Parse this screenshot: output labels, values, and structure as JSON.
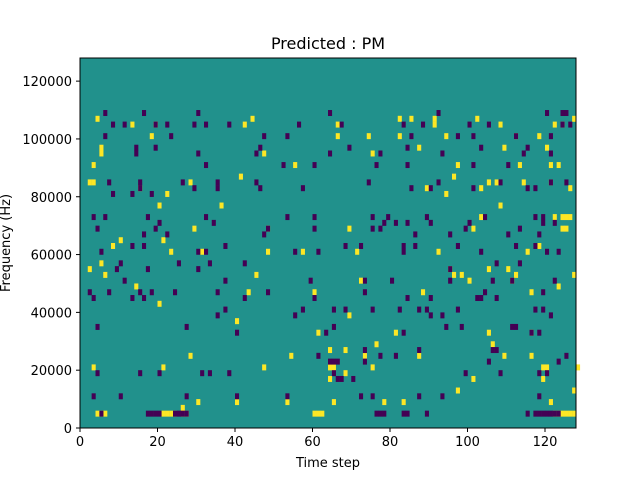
{
  "chart_data": {
    "type": "heatmap",
    "title": "Predicted : PM",
    "xlabel": "Time step",
    "ylabel": "Frequency (Hz)",
    "xlim": [
      0,
      128
    ],
    "ylim": [
      0,
      128000
    ],
    "xticks": [
      0,
      20,
      40,
      60,
      80,
      100,
      120
    ],
    "yticks": [
      0,
      20000,
      40000,
      60000,
      80000,
      100000,
      120000
    ],
    "xtick_labels": [
      "0",
      "20",
      "40",
      "60",
      "80",
      "100",
      "120"
    ],
    "ytick_labels": [
      "0",
      "20000",
      "40000",
      "60000",
      "80000",
      "100000",
      "120000"
    ],
    "grid": false,
    "colormap": "viridis",
    "colors": {
      "background": "#21918c",
      "low": "#440154",
      "high": "#fde725"
    },
    "cell_size": {
      "time_steps": 1,
      "frequency_hz": 2000
    },
    "high_cells": [
      [
        4,
        2
      ],
      [
        5,
        2
      ],
      [
        6,
        2
      ],
      [
        21,
        2
      ],
      [
        22,
        2
      ],
      [
        23,
        2
      ],
      [
        24,
        2
      ],
      [
        26,
        2
      ],
      [
        27,
        2
      ],
      [
        60,
        2
      ],
      [
        61,
        2
      ],
      [
        62,
        2
      ],
      [
        122,
        2
      ],
      [
        123,
        2
      ],
      [
        124,
        2
      ],
      [
        125,
        2
      ],
      [
        126,
        2
      ],
      [
        127,
        2
      ],
      [
        26,
        3
      ],
      [
        30,
        4
      ],
      [
        40,
        4
      ],
      [
        53,
        4
      ],
      [
        65,
        4
      ],
      [
        78,
        4
      ],
      [
        83,
        4
      ],
      [
        121,
        4
      ],
      [
        97,
        6
      ],
      [
        127,
        6
      ],
      [
        64,
        8
      ],
      [
        101,
        8
      ],
      [
        119,
        8
      ],
      [
        68,
        9
      ],
      [
        3,
        10
      ],
      [
        21,
        10
      ],
      [
        47,
        10
      ],
      [
        64,
        10
      ],
      [
        65,
        10
      ],
      [
        75,
        10
      ],
      [
        119,
        10
      ],
      [
        120,
        10
      ],
      [
        128,
        10
      ],
      [
        28,
        12
      ],
      [
        54,
        12
      ],
      [
        73,
        12
      ],
      [
        87,
        12
      ],
      [
        109,
        12
      ],
      [
        116,
        12
      ],
      [
        64,
        13
      ],
      [
        68,
        13
      ],
      [
        76,
        14
      ],
      [
        106,
        14
      ],
      [
        61,
        16
      ],
      [
        81,
        16
      ],
      [
        105,
        16
      ],
      [
        116,
        16
      ],
      [
        40,
        18
      ],
      [
        69,
        19
      ],
      [
        20,
        21
      ],
      [
        43,
        23
      ],
      [
        60,
        23
      ],
      [
        88,
        23
      ],
      [
        116,
        23
      ],
      [
        14,
        24
      ],
      [
        123,
        24
      ],
      [
        72,
        25
      ],
      [
        100,
        25
      ],
      [
        111,
        25
      ],
      [
        6,
        26
      ],
      [
        45,
        26
      ],
      [
        96,
        26
      ],
      [
        98,
        26
      ],
      [
        112,
        26
      ],
      [
        127,
        26
      ],
      [
        2,
        27
      ],
      [
        95,
        27
      ],
      [
        105,
        27
      ],
      [
        110,
        27
      ],
      [
        5,
        28
      ],
      [
        23,
        30
      ],
      [
        31,
        30
      ],
      [
        48,
        30
      ],
      [
        57,
        30
      ],
      [
        71,
        30
      ],
      [
        92,
        30
      ],
      [
        115,
        30
      ],
      [
        8,
        31
      ],
      [
        118,
        31
      ],
      [
        10,
        32
      ],
      [
        21,
        32
      ],
      [
        29,
        34
      ],
      [
        48,
        34
      ],
      [
        69,
        34
      ],
      [
        101,
        34
      ],
      [
        124,
        34
      ],
      [
        125,
        34
      ],
      [
        103,
        36
      ],
      [
        122,
        36
      ],
      [
        124,
        36
      ],
      [
        125,
        36
      ],
      [
        126,
        36
      ],
      [
        20,
        38
      ],
      [
        36,
        38
      ],
      [
        108,
        38
      ],
      [
        22,
        40
      ],
      [
        94,
        40
      ],
      [
        15,
        41
      ],
      [
        89,
        41
      ],
      [
        103,
        41
      ],
      [
        126,
        41
      ],
      [
        2,
        42
      ],
      [
        3,
        42
      ],
      [
        28,
        42
      ],
      [
        105,
        42
      ],
      [
        107,
        42
      ],
      [
        114,
        42
      ],
      [
        121,
        42
      ],
      [
        41,
        43
      ],
      [
        96,
        43
      ],
      [
        3,
        45
      ],
      [
        55,
        45
      ],
      [
        97,
        45
      ],
      [
        113,
        45
      ],
      [
        121,
        45
      ],
      [
        123,
        45
      ],
      [
        5,
        47
      ],
      [
        47,
        47
      ],
      [
        75,
        47
      ],
      [
        5,
        48
      ],
      [
        87,
        48
      ],
      [
        109,
        48
      ],
      [
        120,
        48
      ],
      [
        18,
        50
      ],
      [
        66,
        50
      ],
      [
        74,
        50
      ],
      [
        82,
        50
      ],
      [
        94,
        50
      ],
      [
        112,
        50
      ],
      [
        118,
        50
      ],
      [
        13,
        52
      ],
      [
        19,
        52
      ],
      [
        42,
        52
      ],
      [
        66,
        52
      ],
      [
        91,
        52
      ],
      [
        108,
        52
      ],
      [
        122,
        52
      ],
      [
        124,
        52
      ],
      [
        4,
        53
      ],
      [
        44,
        53
      ],
      [
        82,
        53
      ],
      [
        85,
        53
      ],
      [
        91,
        53
      ],
      [
        102,
        53
      ],
      [
        127,
        53
      ]
    ],
    "low_cells": [
      [
        5,
        2
      ],
      [
        17,
        2
      ],
      [
        18,
        2
      ],
      [
        19,
        2
      ],
      [
        20,
        2
      ],
      [
        24,
        2
      ],
      [
        25,
        2
      ],
      [
        26,
        2
      ],
      [
        27,
        2
      ],
      [
        76,
        2
      ],
      [
        77,
        2
      ],
      [
        78,
        2
      ],
      [
        83,
        2
      ],
      [
        84,
        2
      ],
      [
        89,
        2
      ],
      [
        115,
        2
      ],
      [
        117,
        2
      ],
      [
        118,
        2
      ],
      [
        119,
        2
      ],
      [
        120,
        2
      ],
      [
        121,
        2
      ],
      [
        122,
        2
      ],
      [
        123,
        2
      ],
      [
        3,
        5
      ],
      [
        10,
        5
      ],
      [
        27,
        5
      ],
      [
        40,
        5
      ],
      [
        53,
        5
      ],
      [
        72,
        5
      ],
      [
        75,
        5
      ],
      [
        87,
        5
      ],
      [
        93,
        5
      ],
      [
        118,
        5
      ],
      [
        66,
        8
      ],
      [
        67,
        8
      ],
      [
        70,
        8
      ],
      [
        4,
        9
      ],
      [
        15,
        9
      ],
      [
        20,
        9
      ],
      [
        31,
        9
      ],
      [
        33,
        9
      ],
      [
        38,
        9
      ],
      [
        65,
        9
      ],
      [
        99,
        9
      ],
      [
        108,
        9
      ],
      [
        118,
        9
      ],
      [
        120,
        9
      ],
      [
        64,
        11
      ],
      [
        65,
        11
      ],
      [
        66,
        11
      ],
      [
        73,
        11
      ],
      [
        105,
        11
      ],
      [
        123,
        11
      ],
      [
        61,
        12
      ],
      [
        77,
        12
      ],
      [
        81,
        12
      ],
      [
        125,
        12
      ],
      [
        73,
        13
      ],
      [
        87,
        13
      ],
      [
        106,
        13
      ],
      [
        107,
        13
      ],
      [
        40,
        16
      ],
      [
        63,
        16
      ],
      [
        83,
        16
      ],
      [
        116,
        16
      ],
      [
        118,
        16
      ],
      [
        4,
        17
      ],
      [
        27,
        17
      ],
      [
        65,
        17
      ],
      [
        94,
        17
      ],
      [
        98,
        17
      ],
      [
        111,
        17
      ],
      [
        112,
        17
      ],
      [
        35,
        19
      ],
      [
        55,
        19
      ],
      [
        90,
        19
      ],
      [
        93,
        19
      ],
      [
        121,
        19
      ],
      [
        37,
        20
      ],
      [
        57,
        20
      ],
      [
        65,
        20
      ],
      [
        68,
        20
      ],
      [
        75,
        20
      ],
      [
        82,
        20
      ],
      [
        87,
        20
      ],
      [
        89,
        20
      ],
      [
        97,
        20
      ],
      [
        117,
        20
      ],
      [
        119,
        20
      ],
      [
        3,
        22
      ],
      [
        13,
        22
      ],
      [
        16,
        22
      ],
      [
        42,
        22
      ],
      [
        60,
        22
      ],
      [
        84,
        22
      ],
      [
        90,
        22
      ],
      [
        102,
        22
      ],
      [
        103,
        22
      ],
      [
        107,
        22
      ],
      [
        2,
        23
      ],
      [
        7,
        23
      ],
      [
        15,
        23
      ],
      [
        18,
        23
      ],
      [
        24,
        23
      ],
      [
        35,
        23
      ],
      [
        48,
        23
      ],
      [
        73,
        23
      ],
      [
        104,
        23
      ],
      [
        119,
        23
      ],
      [
        11,
        25
      ],
      [
        37,
        25
      ],
      [
        59,
        25
      ],
      [
        73,
        25
      ],
      [
        80,
        25
      ],
      [
        95,
        25
      ],
      [
        106,
        25
      ],
      [
        111,
        25
      ],
      [
        122,
        25
      ],
      [
        9,
        27
      ],
      [
        17,
        27
      ],
      [
        30,
        27
      ],
      [
        95,
        27
      ],
      [
        10,
        28
      ],
      [
        25,
        28
      ],
      [
        33,
        28
      ],
      [
        42,
        28
      ],
      [
        107,
        28
      ],
      [
        113,
        28
      ],
      [
        5,
        30
      ],
      [
        30,
        30
      ],
      [
        32,
        30
      ],
      [
        55,
        30
      ],
      [
        61,
        30
      ],
      [
        83,
        30
      ],
      [
        103,
        30
      ],
      [
        120,
        30
      ],
      [
        123,
        30
      ],
      [
        13,
        31
      ],
      [
        16,
        31
      ],
      [
        37,
        31
      ],
      [
        68,
        31
      ],
      [
        72,
        31
      ],
      [
        83,
        31
      ],
      [
        86,
        31
      ],
      [
        97,
        31
      ],
      [
        112,
        31
      ],
      [
        117,
        31
      ],
      [
        16,
        33
      ],
      [
        22,
        33
      ],
      [
        47,
        33
      ],
      [
        86,
        33
      ],
      [
        95,
        33
      ],
      [
        110,
        33
      ],
      [
        118,
        33
      ],
      [
        4,
        34
      ],
      [
        19,
        34
      ],
      [
        48,
        34
      ],
      [
        60,
        34
      ],
      [
        75,
        34
      ],
      [
        77,
        34
      ],
      [
        99,
        34
      ],
      [
        113,
        34
      ],
      [
        20,
        35
      ],
      [
        34,
        35
      ],
      [
        78,
        35
      ],
      [
        81,
        35
      ],
      [
        84,
        35
      ],
      [
        90,
        35
      ],
      [
        100,
        35
      ],
      [
        119,
        35
      ],
      [
        122,
        35
      ],
      [
        3,
        36
      ],
      [
        6,
        36
      ],
      [
        17,
        36
      ],
      [
        32,
        36
      ],
      [
        53,
        36
      ],
      [
        60,
        36
      ],
      [
        75,
        36
      ],
      [
        79,
        36
      ],
      [
        89,
        36
      ],
      [
        104,
        36
      ],
      [
        117,
        36
      ],
      [
        119,
        36
      ],
      [
        8,
        40
      ],
      [
        13,
        40
      ],
      [
        18,
        40
      ],
      [
        15,
        41
      ],
      [
        29,
        41
      ],
      [
        35,
        41
      ],
      [
        46,
        41
      ],
      [
        57,
        41
      ],
      [
        85,
        41
      ],
      [
        90,
        41
      ],
      [
        101,
        41
      ],
      [
        115,
        41
      ],
      [
        117,
        41
      ],
      [
        7,
        42
      ],
      [
        15,
        42
      ],
      [
        26,
        42
      ],
      [
        35,
        42
      ],
      [
        45,
        42
      ],
      [
        74,
        42
      ],
      [
        92,
        42
      ],
      [
        108,
        42
      ],
      [
        121,
        42
      ],
      [
        125,
        42
      ],
      [
        32,
        45
      ],
      [
        52,
        45
      ],
      [
        60,
        45
      ],
      [
        76,
        45
      ],
      [
        84,
        45
      ],
      [
        101,
        45
      ],
      [
        110,
        45
      ],
      [
        14,
        47
      ],
      [
        30,
        47
      ],
      [
        45,
        47
      ],
      [
        64,
        47
      ],
      [
        77,
        47
      ],
      [
        93,
        47
      ],
      [
        114,
        47
      ],
      [
        121,
        47
      ],
      [
        14,
        48
      ],
      [
        19,
        48
      ],
      [
        46,
        48
      ],
      [
        69,
        48
      ],
      [
        84,
        48
      ],
      [
        103,
        48
      ],
      [
        115,
        48
      ],
      [
        6,
        50
      ],
      [
        23,
        50
      ],
      [
        47,
        50
      ],
      [
        53,
        50
      ],
      [
        85,
        50
      ],
      [
        97,
        50
      ],
      [
        101,
        50
      ],
      [
        112,
        50
      ],
      [
        121,
        50
      ],
      [
        8,
        52
      ],
      [
        11,
        52
      ],
      [
        19,
        52
      ],
      [
        22,
        52
      ],
      [
        29,
        52
      ],
      [
        32,
        52
      ],
      [
        38,
        52
      ],
      [
        56,
        52
      ],
      [
        67,
        52
      ],
      [
        83,
        52
      ],
      [
        88,
        52
      ],
      [
        100,
        52
      ],
      [
        105,
        52
      ],
      [
        124,
        52
      ],
      [
        126,
        52
      ],
      [
        6,
        54
      ],
      [
        16,
        54
      ],
      [
        30,
        54
      ],
      [
        64,
        54
      ],
      [
        92,
        54
      ],
      [
        120,
        54
      ],
      [
        124,
        54
      ],
      [
        125,
        54
      ]
    ]
  }
}
